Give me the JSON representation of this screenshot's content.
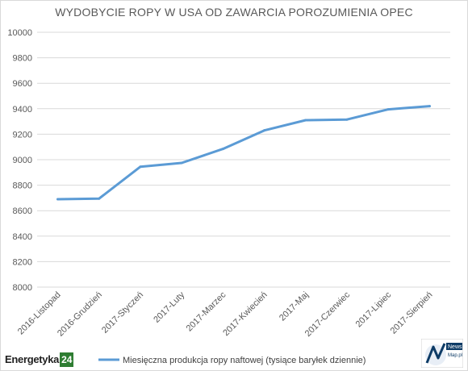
{
  "chart_data": {
    "type": "line",
    "title": "WYDOBYCIE ROPY W USA OD ZAWARCIA POROZUMIENIA OPEC",
    "categories": [
      "2016-Listopad",
      "2016-Grudzień",
      "2017-Styczeń",
      "2017-Luty",
      "2017-Marzec",
      "2017-Kwiecień",
      "2017-Maj",
      "2017-Czerwiec",
      "2017-Lipiec",
      "2017-Sierpień"
    ],
    "series": [
      {
        "name": "Miesięczna produkcja ropy naftowej (tysiące baryłek dziennie)",
        "values": [
          8690,
          8695,
          8945,
          8975,
          9085,
          9230,
          9310,
          9315,
          9395,
          9420
        ],
        "color": "#5b9bd5"
      }
    ],
    "ylim": [
      8000,
      10000
    ],
    "yticks": [
      8000,
      8200,
      8400,
      8600,
      8800,
      9000,
      9200,
      9400,
      9600,
      9800,
      10000
    ],
    "grid": true,
    "legend_position": "bottom"
  },
  "logos": {
    "left_word": "Energetyka",
    "left_num": "24",
    "right_text_1": "News",
    "right_text_2": "Map.pl"
  }
}
